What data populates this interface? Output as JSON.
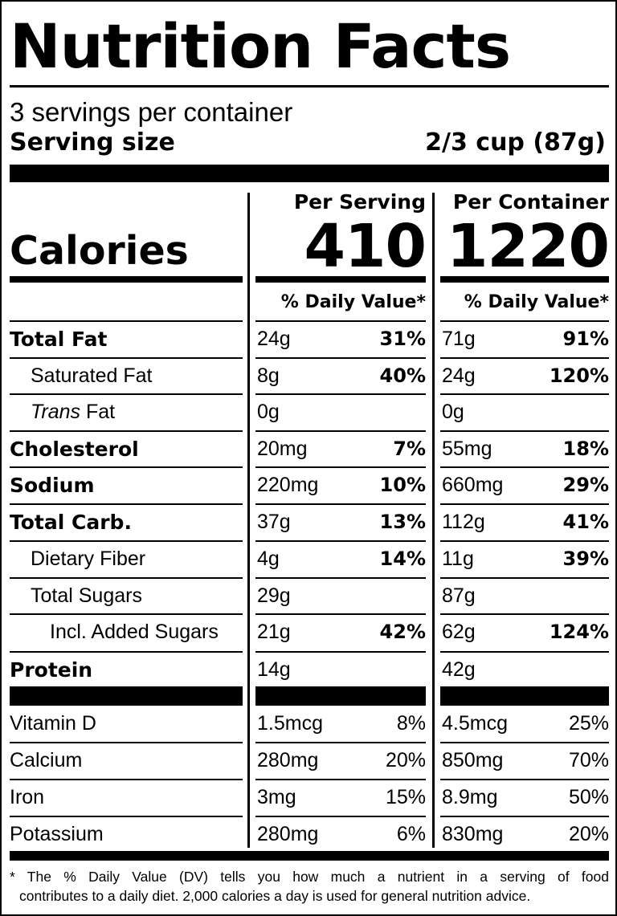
{
  "title": "Nutrition Facts",
  "servings_per_container": "3 servings per container",
  "serving_size_label": "Serving size",
  "serving_size_value": "2/3 cup (87g)",
  "per_serving_header": "Per Serving",
  "per_container_header": "Per Container",
  "calories_label": "Calories",
  "calories_per_serving": "410",
  "calories_per_container": "1220",
  "daily_value_header": "% Daily Value*",
  "nutrients": [
    {
      "name": "Total Fat",
      "serving_amount": "24g",
      "serving_dv": "31%",
      "container_amount": "71g",
      "container_dv": "91%"
    },
    {
      "name": "Saturated Fat",
      "serving_amount": "8g",
      "serving_dv": "40%",
      "container_amount": "24g",
      "container_dv": "120%"
    },
    {
      "name_italic": "Trans",
      "name_rest": " Fat",
      "serving_amount": "0g",
      "container_amount": "0g"
    },
    {
      "name": "Cholesterol",
      "serving_amount": "20mg",
      "serving_dv": "7%",
      "container_amount": "55mg",
      "container_dv": "18%"
    },
    {
      "name": "Sodium",
      "serving_amount": "220mg",
      "serving_dv": "10%",
      "container_amount": "660mg",
      "container_dv": "29%"
    },
    {
      "name": "Total Carb.",
      "serving_amount": "37g",
      "serving_dv": "13%",
      "container_amount": "112g",
      "container_dv": "41%"
    },
    {
      "name": "Dietary Fiber",
      "serving_amount": "4g",
      "serving_dv": "14%",
      "container_amount": "11g",
      "container_dv": "39%"
    },
    {
      "name": "Total Sugars",
      "serving_amount": "29g",
      "container_amount": "87g"
    },
    {
      "name": "Incl. Added Sugars",
      "serving_amount": "21g",
      "serving_dv": "42%",
      "container_amount": "62g",
      "container_dv": "124%"
    },
    {
      "name": "Protein",
      "serving_amount": "14g",
      "container_amount": "42g"
    }
  ],
  "vitamins": [
    {
      "name": "Vitamin D",
      "serving_amount": "1.5mcg",
      "serving_dv": "8%",
      "container_amount": "4.5mcg",
      "container_dv": "25%"
    },
    {
      "name": "Calcium",
      "serving_amount": "280mg",
      "serving_dv": "20%",
      "container_amount": "850mg",
      "container_dv": "70%"
    },
    {
      "name": "Iron",
      "serving_amount": "3mg",
      "serving_dv": "15%",
      "container_amount": "8.9mg",
      "container_dv": "50%"
    },
    {
      "name": "Potassium",
      "serving_amount": "280mg",
      "serving_dv": "6%",
      "container_amount": "830mg",
      "container_dv": "20%"
    }
  ],
  "footnote_line1": "* The % Daily Value (DV) tells you how much a nutrient in a serving of food",
  "footnote_line2": "contributes to a daily diet. 2,000 calories a day is used for general nutrition advice."
}
